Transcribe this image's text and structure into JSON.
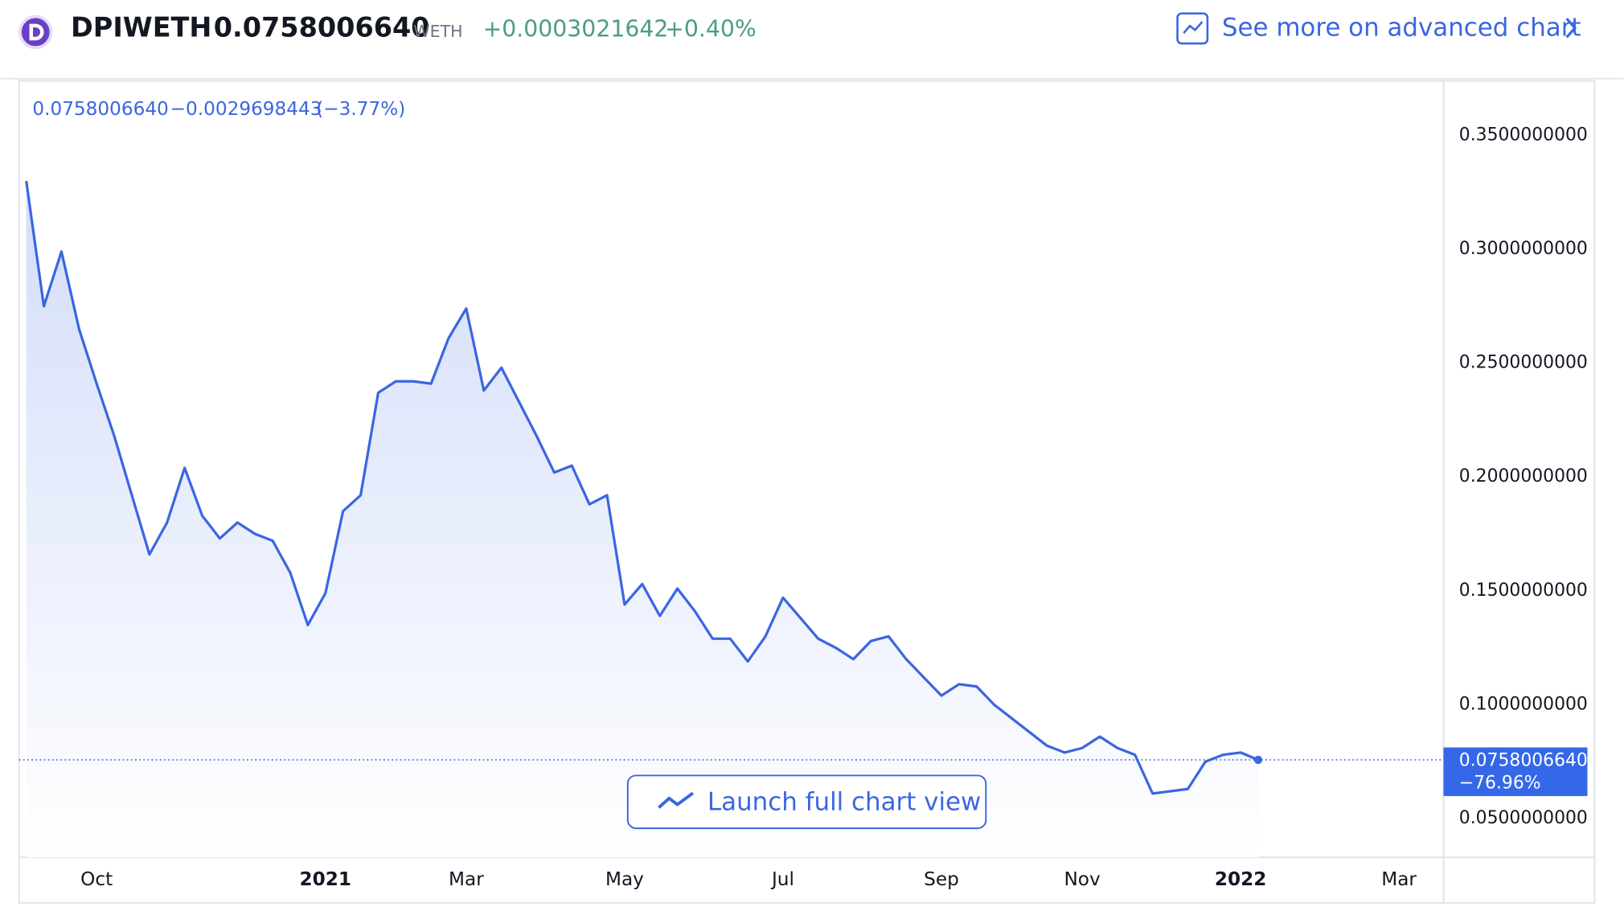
{
  "header": {
    "symbol": "DPIWETH",
    "price": "0.0758006640",
    "unit": "WETH",
    "change": "+0.0003021642",
    "change_pct": "+0.40%",
    "link": "See more on advanced chart"
  },
  "chart_data": {
    "type": "line",
    "legend": {
      "value": "0.0758006640",
      "change": "−0.0029698443",
      "change_pct": "(−3.77%)"
    },
    "last_price_label": {
      "value": "0.0758006640",
      "change_pct": "−76.96%"
    },
    "button": "Launch full chart view",
    "categories": [
      null,
      null,
      null,
      null,
      "Oct",
      null,
      null,
      null,
      null,
      null,
      null,
      null,
      null,
      null,
      null,
      null,
      null,
      "2021",
      null,
      null,
      null,
      null,
      null,
      null,
      null,
      "Mar",
      null,
      null,
      null,
      null,
      null,
      null,
      null,
      null,
      "May",
      null,
      null,
      null,
      null,
      null,
      null,
      null,
      null,
      "Jul",
      null,
      null,
      null,
      null,
      null,
      null,
      null,
      null,
      "Sep",
      null,
      null,
      null,
      null,
      null,
      null,
      null,
      "Nov",
      null,
      null,
      null,
      null,
      null,
      null,
      null,
      null,
      "2022",
      null,
      null,
      null,
      null,
      null,
      null,
      null,
      null,
      "Mar",
      null,
      null
    ],
    "series": [
      {
        "name": "DPIWETH",
        "color": "#3b66e0",
        "values": [
          0.33,
          0.275,
          0.299,
          0.265,
          0.241,
          0.218,
          0.192,
          0.166,
          0.18,
          0.204,
          0.183,
          0.173,
          0.18,
          0.175,
          0.172,
          0.158,
          0.135,
          0.149,
          0.185,
          0.192,
          0.237,
          0.242,
          0.242,
          0.241,
          0.261,
          0.274,
          0.238,
          0.248,
          0.233,
          0.218,
          0.202,
          0.205,
          0.188,
          0.192,
          0.144,
          0.153,
          0.139,
          0.151,
          0.141,
          0.129,
          0.129,
          0.119,
          0.13,
          0.147,
          0.138,
          0.129,
          0.125,
          0.12,
          0.128,
          0.13,
          0.12,
          0.112,
          0.104,
          0.109,
          0.108,
          0.1,
          0.094,
          0.088,
          0.082,
          0.079,
          0.081,
          0.086,
          0.081,
          0.078,
          0.061,
          0.062,
          0.063,
          0.075,
          0.078,
          0.079,
          0.075800664,
          null,
          null,
          null,
          null,
          null,
          null,
          null,
          null,
          null,
          null
        ]
      }
    ],
    "ylim": [
      0.033,
      0.374
    ],
    "yticks": [
      {
        "value": 0.05,
        "label": "0.0500000000"
      },
      {
        "value": 0.1,
        "label": "0.1000000000"
      },
      {
        "value": 0.15,
        "label": "0.1500000000"
      },
      {
        "value": 0.2,
        "label": "0.2000000000"
      },
      {
        "value": 0.25,
        "label": "0.2500000000"
      },
      {
        "value": 0.3,
        "label": "0.3000000000"
      },
      {
        "value": 0.35,
        "label": "0.3500000000"
      }
    ],
    "grid": false
  }
}
